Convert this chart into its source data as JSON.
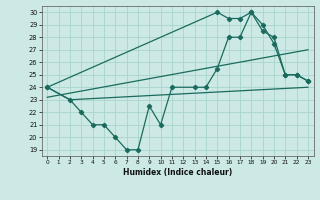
{
  "title": "",
  "xlabel": "Humidex (Indice chaleur)",
  "xlim": [
    -0.5,
    23.5
  ],
  "ylim": [
    18.5,
    30.5
  ],
  "xticks": [
    0,
    1,
    2,
    3,
    4,
    5,
    6,
    7,
    8,
    9,
    10,
    11,
    12,
    13,
    14,
    15,
    16,
    17,
    18,
    19,
    20,
    21,
    22,
    23
  ],
  "yticks": [
    19,
    20,
    21,
    22,
    23,
    24,
    25,
    26,
    27,
    28,
    29,
    30
  ],
  "bg_color": "#cce9e5",
  "grid_color": "#aad4cf",
  "line_color": "#1a6b5e",
  "line1_x": [
    0,
    2,
    3,
    4,
    5,
    6,
    7,
    8,
    9,
    10,
    11,
    13,
    14,
    15,
    16,
    17,
    18,
    19,
    20,
    21,
    22,
    23
  ],
  "line1_y": [
    24,
    23,
    22,
    21,
    21,
    20,
    19,
    19,
    22.5,
    21,
    24,
    24,
    24,
    25.5,
    28,
    28,
    30,
    28.5,
    28,
    25,
    25,
    24.5
  ],
  "line2_x": [
    0,
    2,
    23
  ],
  "line2_y": [
    24,
    23,
    24
  ],
  "line3_x": [
    0,
    23
  ],
  "line3_y": [
    23.2,
    27.0
  ],
  "line4_x": [
    0,
    15,
    16,
    17,
    18,
    19,
    20,
    21,
    22,
    23
  ],
  "line4_y": [
    24,
    30,
    29.5,
    29.5,
    30,
    29,
    27.5,
    25,
    25,
    24.5
  ]
}
